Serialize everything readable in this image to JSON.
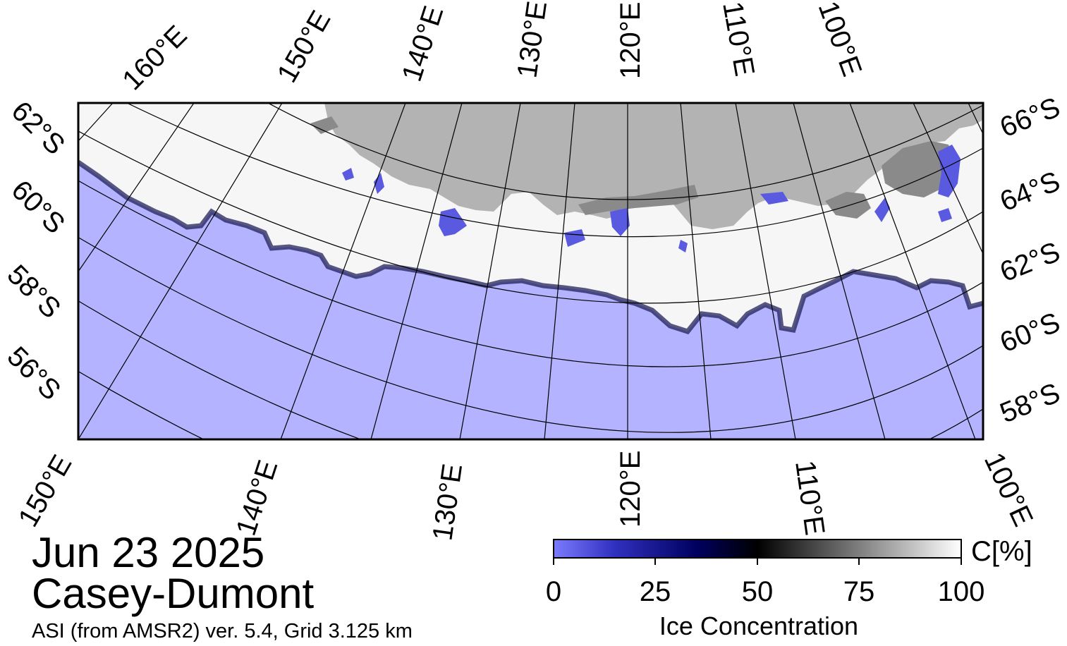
{
  "map": {
    "date": "Jun 23 2025",
    "region": "Casey-Dumont",
    "product": "ASI (from AMSR2) ver. 5.4,  Grid 3.125 km",
    "colors": {
      "ocean": "#b3b3ff",
      "land": "#b3b3b3",
      "land_ice_shadow": "#8a8a8a",
      "ice_high": "#ffffff",
      "ice_low": "#5a5aee",
      "graticule": "#000000"
    },
    "top_lon_labels": [
      "160°E",
      "150°E",
      "140°E",
      "130°E",
      "120°E",
      "110°E",
      "100°E"
    ],
    "bottom_lon_labels": [
      "150°E",
      "140°E",
      "130°E",
      "120°E",
      "110°E",
      "100°E"
    ],
    "left_lat_labels": [
      "62°S",
      "60°S",
      "58°S",
      "56°S"
    ],
    "right_lat_labels": [
      "66°S",
      "64°S",
      "62°S",
      "60°S",
      "58°S"
    ]
  },
  "colorbar": {
    "title": "Ice Concentration",
    "unit": "C[%]",
    "ticks": [
      "0",
      "25",
      "50",
      "75",
      "100"
    ],
    "min": 0,
    "max": 100,
    "stops": [
      {
        "value": 0,
        "color": "#7b7bff"
      },
      {
        "value": 15,
        "color": "#3030c0"
      },
      {
        "value": 35,
        "color": "#000060"
      },
      {
        "value": 50,
        "color": "#000000"
      },
      {
        "value": 75,
        "color": "#7f7f7f"
      },
      {
        "value": 100,
        "color": "#ffffff"
      }
    ]
  }
}
